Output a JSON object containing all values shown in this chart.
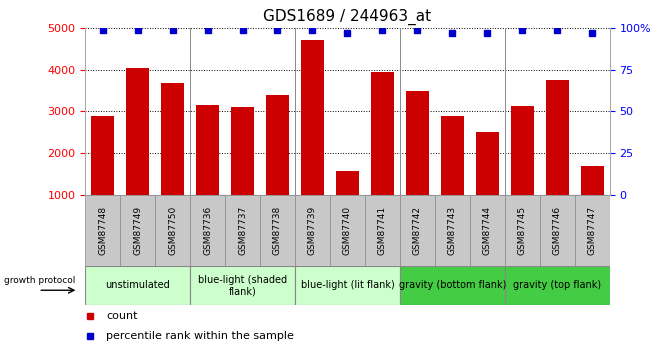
{
  "title": "GDS1689 / 244963_at",
  "samples": [
    "GSM87748",
    "GSM87749",
    "GSM87750",
    "GSM87736",
    "GSM87737",
    "GSM87738",
    "GSM87739",
    "GSM87740",
    "GSM87741",
    "GSM87742",
    "GSM87743",
    "GSM87744",
    "GSM87745",
    "GSM87746",
    "GSM87747"
  ],
  "counts": [
    2900,
    4050,
    3680,
    3150,
    3100,
    3400,
    4720,
    1580,
    3940,
    3500,
    2890,
    2500,
    3130,
    3750,
    1700
  ],
  "percentiles": [
    99,
    99,
    99,
    99,
    99,
    99,
    99,
    97,
    99,
    99,
    97,
    97,
    99,
    99,
    97
  ],
  "groups": [
    {
      "label": "unstimulated",
      "start": 0,
      "end": 3,
      "color": "#ccffcc"
    },
    {
      "label": "blue-light (shaded\nflank)",
      "start": 3,
      "end": 6,
      "color": "#ccffcc"
    },
    {
      "label": "blue-light (lit flank)",
      "start": 6,
      "end": 9,
      "color": "#ccffcc"
    },
    {
      "label": "gravity (bottom flank)",
      "start": 9,
      "end": 12,
      "color": "#66dd66"
    },
    {
      "label": "gravity (top flank)",
      "start": 12,
      "end": 15,
      "color": "#66dd66"
    }
  ],
  "group_dividers": [
    3,
    6,
    9,
    12
  ],
  "ylim_left": [
    1000,
    5000
  ],
  "ylim_right": [
    0,
    100
  ],
  "yticks_left": [
    1000,
    2000,
    3000,
    4000,
    5000
  ],
  "yticks_right": [
    0,
    25,
    50,
    75,
    100
  ],
  "ytick_right_labels": [
    "0",
    "25",
    "50",
    "75",
    "100%"
  ],
  "bar_color": "#cc0000",
  "dot_color": "#0000cc",
  "sample_bg_color": "#c8c8c8",
  "plot_bg_color": "#ffffff",
  "light_green": "#ccffcc",
  "dark_green": "#44cc44",
  "group_border_color": "#888888",
  "grid_color": "#000000",
  "legend_count_color": "#cc0000",
  "legend_pct_color": "#0000cc",
  "title_fontsize": 11,
  "tick_fontsize": 8,
  "sample_fontsize": 6.5,
  "group_fontsize": 7,
  "legend_fontsize": 8
}
